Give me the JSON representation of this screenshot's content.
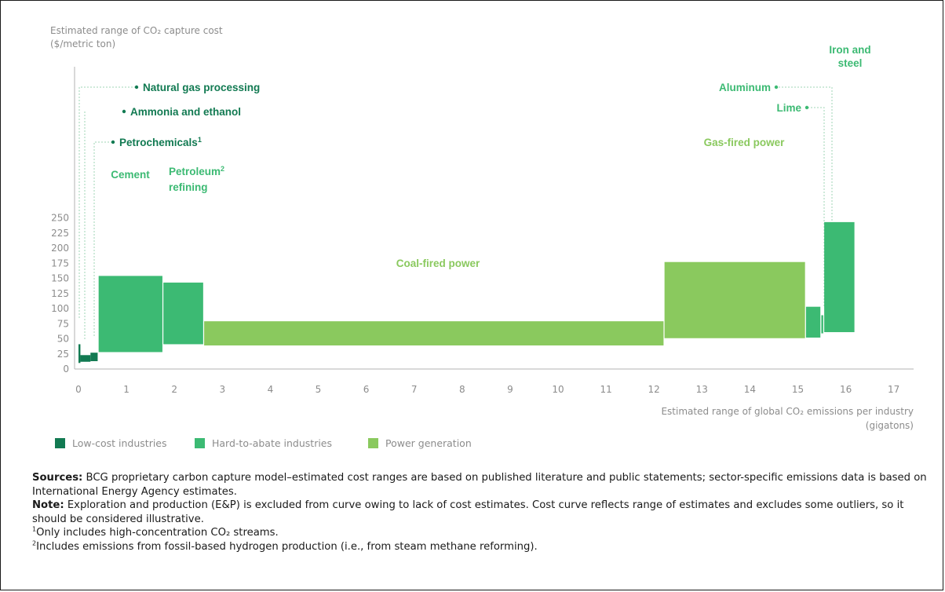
{
  "colors": {
    "low_cost": "#127a52",
    "hard_to_abate": "#3cba73",
    "power": "#8ac95e",
    "label_dark": "#127a52",
    "label_medium": "#3cba73",
    "label_light": "#8ac95e",
    "axis": "#b3b3b3"
  },
  "chart_data": {
    "type": "bar",
    "subtype": "variable-width range (cost curve)",
    "ylabel": "Estimated range of CO₂ capture cost",
    "ylabel_unit": "($/metric ton)",
    "xlabel": "Estimated range of global CO₂ emissions per industry",
    "xlabel_unit": "(gigatons)",
    "xlim": [
      0,
      17
    ],
    "ylim": [
      0,
      250
    ],
    "x_ticks": [
      "0",
      "1",
      "2",
      "3",
      "4",
      "5",
      "6",
      "7",
      "8",
      "9",
      "10",
      "11",
      "12",
      "13",
      "14",
      "15",
      "16",
      "17"
    ],
    "y_ticks": [
      "0",
      "25",
      "50",
      "75",
      "100",
      "125",
      "150",
      "175",
      "200",
      "225",
      "250"
    ],
    "grid": false,
    "legend": [
      {
        "key": "low_cost",
        "label": "Low-cost industries"
      },
      {
        "key": "hard_to_abate",
        "label": "Hard-to-abate industries"
      },
      {
        "key": "power",
        "label": "Power generation"
      }
    ],
    "series": [
      {
        "label": "Natural gas processing",
        "group": "low_cost",
        "x0": 0.0,
        "x1": 0.04,
        "y_low": 10,
        "y_high": 41
      },
      {
        "label": "Ammonia and ethanol",
        "group": "low_cost",
        "x0": 0.04,
        "x1": 0.25,
        "y_low": 12,
        "y_high": 23
      },
      {
        "label": "Petrochemicals",
        "label_sup": "1",
        "group": "low_cost",
        "x0": 0.25,
        "x1": 0.4,
        "y_low": 13,
        "y_high": 27
      },
      {
        "label": "Cement",
        "group": "hard_to_abate",
        "x0": 0.42,
        "x1": 1.75,
        "y_low": 28,
        "y_high": 154
      },
      {
        "label": "Petroleum",
        "label_sup": "2",
        "label_line2": "refining",
        "group": "hard_to_abate",
        "x0": 1.77,
        "x1": 2.6,
        "y_low": 41,
        "y_high": 143
      },
      {
        "label": "Coal-fired power",
        "group": "power",
        "x0": 2.62,
        "x1": 12.2,
        "y_low": 39,
        "y_high": 79
      },
      {
        "label": "Gas-fired power",
        "group": "power",
        "x0": 12.22,
        "x1": 15.15,
        "y_low": 51,
        "y_high": 177
      },
      {
        "label": "Lime",
        "group": "hard_to_abate",
        "x0": 15.17,
        "x1": 15.47,
        "y_low": 52,
        "y_high": 103
      },
      {
        "label": "Aluminum",
        "group": "hard_to_abate",
        "x0": 15.49,
        "x1": 15.53,
        "y_low": 59,
        "y_high": 89
      },
      {
        "label": "Iron and",
        "label_line2": "steel",
        "group": "hard_to_abate",
        "x0": 15.55,
        "x1": 16.18,
        "y_low": 61,
        "y_high": 243
      }
    ]
  },
  "notes": {
    "sources_label": "Sources:",
    "sources_text": " BCG proprietary carbon capture model–estimated cost ranges are based on published literature and public statements; sector-specific emissions data is based on International Energy Agency estimates.",
    "note_label": "Note:",
    "note_text": " Exploration and production (E&P) is excluded from curve owing to lack of cost estimates. Cost curve reflects range of estimates and excludes some outliers, so it should be considered illustrative.",
    "footnote1_mark": "1",
    "footnote1_text": "Only includes high-concentration CO₂ streams.",
    "footnote2_mark": "2",
    "footnote2_text": "Includes emissions from fossil-based hydrogen production (i.e., from steam methane reforming)."
  }
}
